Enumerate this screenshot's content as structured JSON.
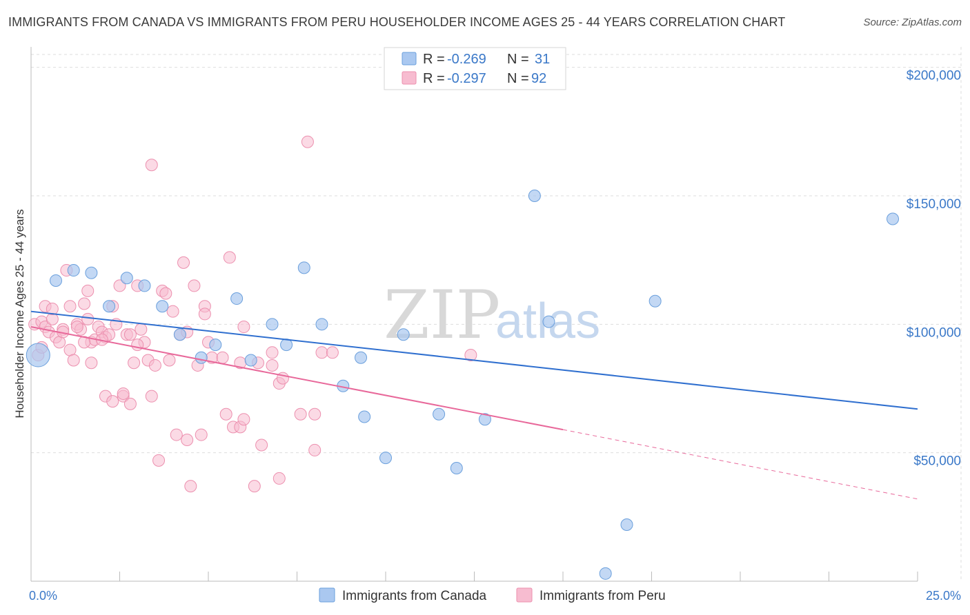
{
  "header": {
    "title": "IMMIGRANTS FROM CANADA VS IMMIGRANTS FROM PERU HOUSEHOLDER INCOME AGES 25 - 44 YEARS CORRELATION CHART",
    "source": "Source: ZipAtlas.com"
  },
  "watermark": {
    "zip": "ZIP",
    "atlas": "atlas"
  },
  "legend": {
    "canada": {
      "r_label": "R = ",
      "r_value": "-0.269",
      "n_label": "N = ",
      "n_value": "31"
    },
    "peru": {
      "r_label": "R = ",
      "r_value": "-0.297",
      "n_label": "N = ",
      "n_value": "92"
    }
  },
  "bottom_legend": {
    "canada": "Immigrants from Canada",
    "peru": "Immigrants from Peru"
  },
  "colors": {
    "canada_fill": "#aac8f0",
    "canada_stroke": "#6a9fdc",
    "canada_line": "#2f6fcf",
    "peru_fill": "#f7bcd0",
    "peru_stroke": "#ec8fae",
    "peru_line": "#e8689a",
    "grid": "#dddddd",
    "tick_text": "#3a78c8"
  },
  "chart_data": {
    "type": "scatter",
    "title": "IMMIGRANTS FROM CANADA VS IMMIGRANTS FROM PERU HOUSEHOLDER INCOME AGES 25 - 44 YEARS CORRELATION CHART",
    "xlabel": "",
    "ylabel": "Householder Income Ages 25 - 44 years",
    "xlim": [
      0,
      25
    ],
    "ylim": [
      0,
      205000
    ],
    "x_tick_labels": [
      "0.0%",
      "25.0%"
    ],
    "y_ticks": [
      50000,
      100000,
      150000,
      200000
    ],
    "y_tick_labels": [
      "$50,000",
      "$100,000",
      "$150,000",
      "$200,000"
    ],
    "grid": true,
    "series": [
      {
        "name": "Immigrants from Canada",
        "r": -0.269,
        "n": 31,
        "trend": {
          "x": [
            0,
            25
          ],
          "y": [
            105000,
            67000
          ]
        },
        "points": [
          {
            "x": 0.2,
            "y": 88000,
            "big": true
          },
          {
            "x": 0.7,
            "y": 117000
          },
          {
            "x": 1.2,
            "y": 121000
          },
          {
            "x": 1.7,
            "y": 120000
          },
          {
            "x": 2.2,
            "y": 107000
          },
          {
            "x": 2.7,
            "y": 118000
          },
          {
            "x": 3.2,
            "y": 115000
          },
          {
            "x": 3.7,
            "y": 107000
          },
          {
            "x": 4.2,
            "y": 96000
          },
          {
            "x": 4.8,
            "y": 87000
          },
          {
            "x": 5.2,
            "y": 92000
          },
          {
            "x": 5.8,
            "y": 110000
          },
          {
            "x": 6.2,
            "y": 86000
          },
          {
            "x": 6.8,
            "y": 100000
          },
          {
            "x": 7.2,
            "y": 92000
          },
          {
            "x": 7.7,
            "y": 122000
          },
          {
            "x": 8.2,
            "y": 100000
          },
          {
            "x": 8.8,
            "y": 76000
          },
          {
            "x": 9.3,
            "y": 87000
          },
          {
            "x": 9.4,
            "y": 64000
          },
          {
            "x": 10.0,
            "y": 48000
          },
          {
            "x": 10.5,
            "y": 96000
          },
          {
            "x": 11.5,
            "y": 65000
          },
          {
            "x": 12.0,
            "y": 44000
          },
          {
            "x": 12.8,
            "y": 63000
          },
          {
            "x": 14.2,
            "y": 150000
          },
          {
            "x": 14.6,
            "y": 101000
          },
          {
            "x": 16.2,
            "y": 3000
          },
          {
            "x": 16.8,
            "y": 22000
          },
          {
            "x": 17.6,
            "y": 109000
          },
          {
            "x": 24.3,
            "y": 141000
          }
        ]
      },
      {
        "name": "Immigrants from Peru",
        "r": -0.297,
        "n": 92,
        "trend": {
          "x": [
            0,
            15
          ],
          "y": [
            99000,
            59000
          ]
        },
        "trend_dashed": {
          "x": [
            15,
            25
          ],
          "y": [
            59000,
            32000
          ]
        },
        "points": [
          {
            "x": 0.1,
            "y": 100000
          },
          {
            "x": 0.2,
            "y": 88000
          },
          {
            "x": 0.3,
            "y": 91000
          },
          {
            "x": 0.3,
            "y": 101000
          },
          {
            "x": 0.4,
            "y": 99000
          },
          {
            "x": 0.4,
            "y": 107000
          },
          {
            "x": 0.5,
            "y": 97000
          },
          {
            "x": 0.6,
            "y": 102000
          },
          {
            "x": 0.6,
            "y": 106000
          },
          {
            "x": 0.7,
            "y": 95000
          },
          {
            "x": 0.8,
            "y": 93000
          },
          {
            "x": 0.9,
            "y": 98000
          },
          {
            "x": 1.0,
            "y": 121000
          },
          {
            "x": 1.1,
            "y": 107000
          },
          {
            "x": 1.1,
            "y": 90000
          },
          {
            "x": 1.2,
            "y": 86000
          },
          {
            "x": 1.3,
            "y": 100000
          },
          {
            "x": 1.4,
            "y": 98000
          },
          {
            "x": 1.5,
            "y": 108000
          },
          {
            "x": 1.6,
            "y": 102000
          },
          {
            "x": 1.6,
            "y": 113000
          },
          {
            "x": 1.7,
            "y": 93000
          },
          {
            "x": 1.7,
            "y": 85000
          },
          {
            "x": 1.8,
            "y": 94000
          },
          {
            "x": 1.9,
            "y": 99000
          },
          {
            "x": 2.0,
            "y": 97000
          },
          {
            "x": 2.1,
            "y": 95000
          },
          {
            "x": 2.1,
            "y": 72000
          },
          {
            "x": 2.2,
            "y": 96000
          },
          {
            "x": 2.3,
            "y": 107000
          },
          {
            "x": 2.3,
            "y": 70000
          },
          {
            "x": 2.4,
            "y": 100000
          },
          {
            "x": 2.5,
            "y": 115000
          },
          {
            "x": 2.6,
            "y": 72000
          },
          {
            "x": 2.6,
            "y": 73000
          },
          {
            "x": 2.7,
            "y": 96000
          },
          {
            "x": 2.8,
            "y": 69000
          },
          {
            "x": 2.9,
            "y": 85000
          },
          {
            "x": 3.0,
            "y": 115000
          },
          {
            "x": 3.1,
            "y": 98000
          },
          {
            "x": 3.2,
            "y": 93000
          },
          {
            "x": 3.3,
            "y": 86000
          },
          {
            "x": 3.4,
            "y": 162000
          },
          {
            "x": 3.4,
            "y": 72000
          },
          {
            "x": 3.5,
            "y": 84000
          },
          {
            "x": 3.6,
            "y": 47000
          },
          {
            "x": 3.7,
            "y": 113000
          },
          {
            "x": 3.8,
            "y": 112000
          },
          {
            "x": 3.9,
            "y": 86000
          },
          {
            "x": 4.0,
            "y": 105000
          },
          {
            "x": 4.1,
            "y": 57000
          },
          {
            "x": 4.2,
            "y": 96000
          },
          {
            "x": 4.3,
            "y": 124000
          },
          {
            "x": 4.4,
            "y": 55000
          },
          {
            "x": 4.5,
            "y": 37000
          },
          {
            "x": 4.6,
            "y": 115000
          },
          {
            "x": 4.7,
            "y": 84000
          },
          {
            "x": 4.8,
            "y": 57000
          },
          {
            "x": 4.9,
            "y": 107000
          },
          {
            "x": 4.9,
            "y": 104000
          },
          {
            "x": 5.0,
            "y": 93000
          },
          {
            "x": 5.1,
            "y": 87000
          },
          {
            "x": 5.5,
            "y": 65000
          },
          {
            "x": 5.6,
            "y": 126000
          },
          {
            "x": 5.7,
            "y": 60000
          },
          {
            "x": 5.9,
            "y": 85000
          },
          {
            "x": 5.9,
            "y": 60000
          },
          {
            "x": 6.0,
            "y": 63000
          },
          {
            "x": 6.0,
            "y": 99000
          },
          {
            "x": 6.3,
            "y": 37000
          },
          {
            "x": 6.4,
            "y": 85000
          },
          {
            "x": 6.5,
            "y": 53000
          },
          {
            "x": 6.8,
            "y": 84000
          },
          {
            "x": 6.8,
            "y": 89000
          },
          {
            "x": 7.0,
            "y": 77000
          },
          {
            "x": 7.0,
            "y": 40000
          },
          {
            "x": 7.1,
            "y": 79000
          },
          {
            "x": 7.6,
            "y": 65000
          },
          {
            "x": 7.8,
            "y": 171000
          },
          {
            "x": 8.0,
            "y": 51000
          },
          {
            "x": 8.0,
            "y": 65000
          },
          {
            "x": 8.2,
            "y": 89000
          },
          {
            "x": 8.5,
            "y": 89000
          },
          {
            "x": 12.4,
            "y": 88000
          },
          {
            "x": 1.3,
            "y": 99000
          },
          {
            "x": 0.9,
            "y": 97000
          },
          {
            "x": 2.0,
            "y": 94000
          },
          {
            "x": 1.5,
            "y": 93000
          },
          {
            "x": 2.8,
            "y": 96000
          },
          {
            "x": 3.0,
            "y": 92000
          },
          {
            "x": 4.4,
            "y": 97000
          },
          {
            "x": 5.4,
            "y": 87000
          }
        ]
      }
    ]
  }
}
